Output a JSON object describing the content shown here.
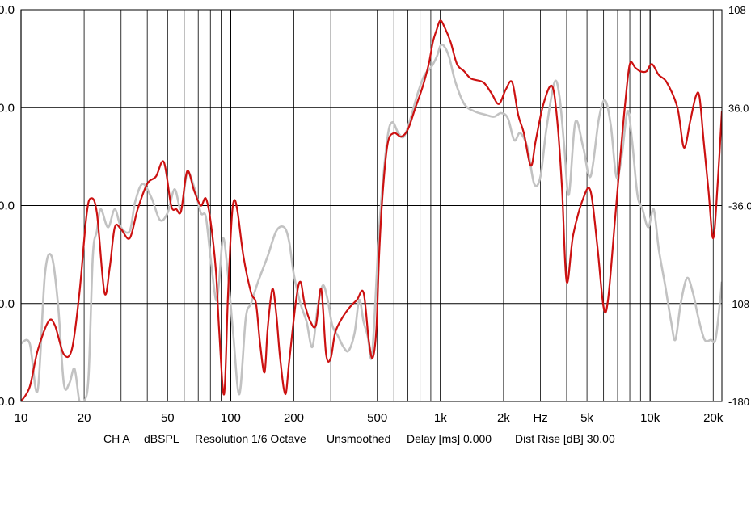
{
  "chart_data": {
    "type": "line",
    "x_scale": "log",
    "xlim": [
      10,
      22000
    ],
    "ylim_left": [
      0.0,
      108.0
    ],
    "ylim_right": [
      -180,
      108
    ],
    "grid": true,
    "x_ticks": [
      {
        "value": 10,
        "label": "10"
      },
      {
        "value": 20,
        "label": "20"
      },
      {
        "value": 50,
        "label": "50"
      },
      {
        "value": 100,
        "label": "100"
      },
      {
        "value": 200,
        "label": "200"
      },
      {
        "value": 500,
        "label": "500"
      },
      {
        "value": 1000,
        "label": "1k"
      },
      {
        "value": 2000,
        "label": "2k"
      },
      {
        "value": 3000,
        "label": "Hz"
      },
      {
        "value": 5000,
        "label": "5k"
      },
      {
        "value": 10000,
        "label": "10k"
      },
      {
        "value": 20000,
        "label": "20k"
      }
    ],
    "left_tick_labels": [
      "0.0",
      "0.0",
      "0.0",
      "0.0",
      "0.0"
    ],
    "right_tick_labels": [
      "108",
      "36.0",
      "-36.0",
      "-108",
      "-180"
    ],
    "series": [
      {
        "color": "#cc1111",
        "points": [
          [
            10,
            0.0
          ],
          [
            11,
            4.0
          ],
          [
            12,
            14.0
          ],
          [
            13.5,
            22.0
          ],
          [
            14.5,
            21.0
          ],
          [
            16,
            13.0
          ],
          [
            17.5,
            14.5
          ],
          [
            19,
            30.0
          ],
          [
            20.5,
            51.0
          ],
          [
            21.5,
            56.0
          ],
          [
            23,
            52.0
          ],
          [
            25,
            30.0
          ],
          [
            26.5,
            37.0
          ],
          [
            28,
            48.0
          ],
          [
            30,
            47.5
          ],
          [
            33,
            45.0
          ],
          [
            36,
            53.0
          ],
          [
            40,
            60.0
          ],
          [
            44,
            62.0
          ],
          [
            48,
            66.0
          ],
          [
            52,
            54.0
          ],
          [
            55,
            53.0
          ],
          [
            58,
            52.5
          ],
          [
            62,
            63.5
          ],
          [
            67,
            58.0
          ],
          [
            72,
            54.0
          ],
          [
            76,
            56.0
          ],
          [
            80,
            50.0
          ],
          [
            85,
            36.0
          ],
          [
            88,
            20.0
          ],
          [
            93,
            2.0
          ],
          [
            97,
            29.0
          ],
          [
            101,
            50.0
          ],
          [
            104,
            55.5
          ],
          [
            108,
            52.0
          ],
          [
            115,
            40.0
          ],
          [
            125,
            30.0
          ],
          [
            132,
            27.0
          ],
          [
            138,
            16.0
          ],
          [
            145,
            8.0
          ],
          [
            150,
            20.0
          ],
          [
            158,
            31.0
          ],
          [
            165,
            24.0
          ],
          [
            172,
            12.0
          ],
          [
            182,
            2.0
          ],
          [
            190,
            11.0
          ],
          [
            205,
            28.0
          ],
          [
            215,
            33.0
          ],
          [
            225,
            27.0
          ],
          [
            240,
            22.0
          ],
          [
            255,
            21.0
          ],
          [
            270,
            31.0
          ],
          [
            285,
            13.0
          ],
          [
            300,
            12.0
          ],
          [
            315,
            19.0
          ],
          [
            340,
            23.0
          ],
          [
            370,
            26.0
          ],
          [
            400,
            28.0
          ],
          [
            430,
            30.0
          ],
          [
            455,
            17.0
          ],
          [
            475,
            12.0
          ],
          [
            495,
            20.0
          ],
          [
            510,
            40.0
          ],
          [
            530,
            57.0
          ],
          [
            560,
            71.0
          ],
          [
            600,
            74.0
          ],
          [
            650,
            73.0
          ],
          [
            700,
            75.0
          ],
          [
            760,
            81.0
          ],
          [
            820,
            86.5
          ],
          [
            880,
            93.0
          ],
          [
            920,
            99.0
          ],
          [
            960,
            102.5
          ],
          [
            1000,
            105.0
          ],
          [
            1050,
            103.0
          ],
          [
            1120,
            99.0
          ],
          [
            1200,
            93.0
          ],
          [
            1300,
            91.0
          ],
          [
            1400,
            89.0
          ],
          [
            1600,
            88.0
          ],
          [
            1750,
            85.0
          ],
          [
            1900,
            82.0
          ],
          [
            2050,
            86.0
          ],
          [
            2200,
            88.0
          ],
          [
            2350,
            79.0
          ],
          [
            2500,
            74.0
          ],
          [
            2700,
            65.0
          ],
          [
            2850,
            72.0
          ],
          [
            3100,
            82.0
          ],
          [
            3400,
            87.0
          ],
          [
            3600,
            78.0
          ],
          [
            3800,
            59.0
          ],
          [
            4000,
            33.0
          ],
          [
            4300,
            46.0
          ],
          [
            4800,
            56.0
          ],
          [
            5200,
            58.0
          ],
          [
            5600,
            43.0
          ],
          [
            6000,
            26.0
          ],
          [
            6300,
            28.0
          ],
          [
            6800,
            50.0
          ],
          [
            7200,
            67.0
          ],
          [
            7600,
            82.0
          ],
          [
            8000,
            93.0
          ],
          [
            8500,
            92.0
          ],
          [
            9000,
            91.0
          ],
          [
            9600,
            91.0
          ],
          [
            10200,
            93.0
          ],
          [
            11000,
            90.0
          ],
          [
            12000,
            88.0
          ],
          [
            13500,
            81.0
          ],
          [
            14500,
            70.0
          ],
          [
            15500,
            77.0
          ],
          [
            16500,
            84.0
          ],
          [
            17200,
            84.0
          ],
          [
            18000,
            72.0
          ],
          [
            19000,
            58.0
          ],
          [
            20000,
            45.0
          ],
          [
            21000,
            60.0
          ],
          [
            22000,
            80.0
          ]
        ]
      },
      {
        "color": "#c2c2c2",
        "points": [
          [
            10,
            16.0
          ],
          [
            11,
            16.0
          ],
          [
            12,
            3.0
          ],
          [
            13,
            35.0
          ],
          [
            14,
            40.0
          ],
          [
            15,
            27.0
          ],
          [
            16,
            5.0
          ],
          [
            17,
            5.0
          ],
          [
            18,
            9.0
          ],
          [
            19,
            0.0
          ],
          [
            20,
            0.0
          ],
          [
            21,
            7.0
          ],
          [
            22,
            40.0
          ],
          [
            23,
            47.0
          ],
          [
            24,
            53.0
          ],
          [
            26,
            48.0
          ],
          [
            28,
            53.0
          ],
          [
            30,
            48.0
          ],
          [
            33,
            47.0
          ],
          [
            35,
            55.0
          ],
          [
            38,
            60.0
          ],
          [
            42,
            56.0
          ],
          [
            46,
            50.0
          ],
          [
            50,
            52.0
          ],
          [
            54,
            58.5
          ],
          [
            58,
            53.0
          ],
          [
            62,
            63.0
          ],
          [
            67,
            59.0
          ],
          [
            72,
            52.0
          ],
          [
            76,
            51.0
          ],
          [
            80,
            40.0
          ],
          [
            85,
            28.0
          ],
          [
            88,
            33.0
          ],
          [
            92,
            45.0
          ],
          [
            97,
            35.0
          ],
          [
            103,
            18.0
          ],
          [
            110,
            2.0
          ],
          [
            118,
            23.0
          ],
          [
            125,
            27.0
          ],
          [
            135,
            33.0
          ],
          [
            150,
            40.0
          ],
          [
            165,
            47.0
          ],
          [
            180,
            48.0
          ],
          [
            190,
            44.0
          ],
          [
            200,
            35.0
          ],
          [
            215,
            27.0
          ],
          [
            230,
            22.0
          ],
          [
            245,
            15.0
          ],
          [
            260,
            26.0
          ],
          [
            275,
            32.0
          ],
          [
            290,
            28.0
          ],
          [
            305,
            21.0
          ],
          [
            325,
            18.0
          ],
          [
            345,
            15.0
          ],
          [
            365,
            14.0
          ],
          [
            390,
            19.0
          ],
          [
            410,
            28.0
          ],
          [
            430,
            22.0
          ],
          [
            450,
            18.0
          ],
          [
            470,
            12.0
          ],
          [
            490,
            28.0
          ],
          [
            505,
            43.0
          ],
          [
            525,
            57.0
          ],
          [
            560,
            73.0
          ],
          [
            590,
            77.0
          ],
          [
            630,
            74.0
          ],
          [
            670,
            73.0
          ],
          [
            720,
            78.0
          ],
          [
            780,
            85.0
          ],
          [
            840,
            90.0
          ],
          [
            900,
            92.0
          ],
          [
            960,
            95.0
          ],
          [
            1000,
            98.0
          ],
          [
            1040,
            98.0
          ],
          [
            1100,
            95.0
          ],
          [
            1180,
            88.0
          ],
          [
            1300,
            82.0
          ],
          [
            1450,
            80.0
          ],
          [
            1650,
            79.0
          ],
          [
            1800,
            78.5
          ],
          [
            1950,
            79.5
          ],
          [
            2100,
            78.0
          ],
          [
            2250,
            72.0
          ],
          [
            2400,
            74.0
          ],
          [
            2600,
            70.0
          ],
          [
            2800,
            60.0
          ],
          [
            3000,
            62.0
          ],
          [
            3200,
            75.0
          ],
          [
            3500,
            88.0
          ],
          [
            3700,
            84.0
          ],
          [
            3900,
            70.0
          ],
          [
            4100,
            57.0
          ],
          [
            4400,
            77.0
          ],
          [
            4800,
            70.0
          ],
          [
            5200,
            62.0
          ],
          [
            5700,
            78.0
          ],
          [
            6100,
            83.0
          ],
          [
            6500,
            76.0
          ],
          [
            6900,
            62.0
          ],
          [
            7300,
            67.0
          ],
          [
            7800,
            80.0
          ],
          [
            8200,
            72.0
          ],
          [
            8700,
            57.0
          ],
          [
            9200,
            53.0
          ],
          [
            9800,
            48.0
          ],
          [
            10400,
            53.0
          ],
          [
            11000,
            42.0
          ],
          [
            11800,
            32.0
          ],
          [
            12600,
            22.0
          ],
          [
            13200,
            17.0
          ],
          [
            14000,
            27.0
          ],
          [
            15000,
            34.0
          ],
          [
            16000,
            30.0
          ],
          [
            17000,
            23.0
          ],
          [
            18200,
            17.0
          ],
          [
            19500,
            17.0
          ],
          [
            20500,
            17.0
          ],
          [
            21500,
            27.0
          ],
          [
            22000,
            33.0
          ]
        ]
      }
    ]
  },
  "footer": {
    "channel": "CH A",
    "unit": "dBSPL",
    "resolution": "Resolution 1/6 Octave",
    "smoothing": "Unsmoothed",
    "delay": "Delay [ms] 0.000",
    "dist_rise": "Dist Rise [dB] 30.00"
  }
}
